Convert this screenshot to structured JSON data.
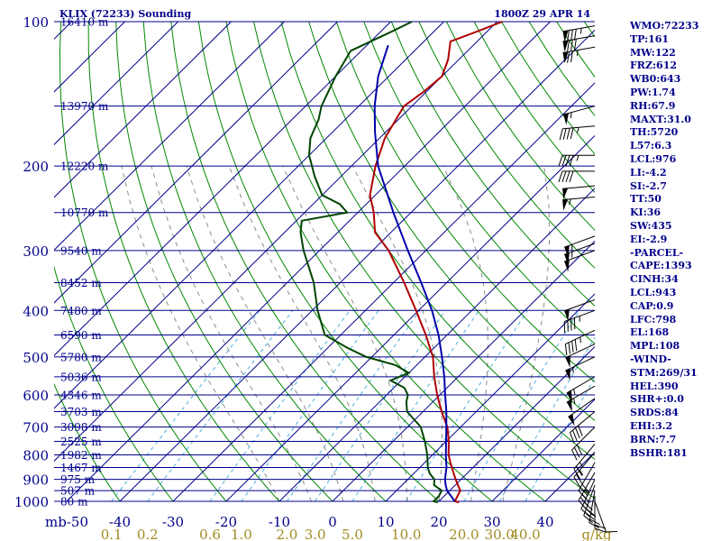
{
  "header": {
    "station": "KLIX (72233) Sounding",
    "time": "1800Z 29 APR 14"
  },
  "stats": [
    "WMO:72233",
    "TP:161",
    "MW:122",
    "FRZ:612",
    "WB0:643",
    "PW:1.74",
    "RH:67.9",
    "MAXT:31.0",
    "TH:5720",
    "L57:6.3",
    "LCL:976",
    "LI:-4.2",
    "SI:-2.7",
    "TT:50",
    "KI:36",
    "SW:435",
    "EI:-2.9",
    "-PARCEL-",
    "CAPE:1393",
    "CINH:34",
    "LCL:943",
    "CAP:0.9",
    "LFC:798",
    "EL:168",
    "MPL:108",
    "-WIND-",
    "STM:269/31",
    "HEL:390",
    "SHR+:0.0",
    "SRDS:84",
    "EHI:3.2",
    "BRN:7.7",
    "BSHR:181"
  ],
  "colors": {
    "isobar": "#00008b",
    "isotherm": "#00008b",
    "dry_adiabat": "#008800",
    "moist_adiabat": "#8c8c8c",
    "mixing_ratio": "#4ab0e0",
    "temperature": "#b00000",
    "dewpoint": "#004400",
    "parcel": "#0000aa",
    "mixing_label": "#a08a20",
    "wind_barb": "#000000"
  },
  "chart_data": {
    "type": "skew-t log-p sounding",
    "pressure_axis": {
      "unit": "mb",
      "range": [
        1000,
        100
      ],
      "scale": "log",
      "ticks": [
        100,
        200,
        300,
        400,
        500,
        600,
        700,
        800,
        900,
        1000
      ]
    },
    "temperature_axis": {
      "ticks": [
        -50,
        -40,
        -30,
        -20,
        -10,
        0,
        10,
        20,
        30,
        40
      ],
      "tick_labels": [
        "mb-50",
        "-40",
        "-30",
        "-20",
        "-10",
        "0",
        "10",
        "20",
        "30",
        "40"
      ]
    },
    "mixing_ratio_labels": {
      "unit": "g/kg",
      "values": [
        "0.1",
        "0.2",
        "0.6",
        "1.0",
        "2.0",
        "3.0",
        "5.0",
        "10.0",
        "20.0",
        "30.0",
        "40.0"
      ],
      "unit_label": "g/kg"
    },
    "height_labels": [
      {
        "p": 100,
        "label": "16410 m"
      },
      {
        "p": 150,
        "label": "13970 m"
      },
      {
        "p": 200,
        "label": "12220 m"
      },
      {
        "p": 250,
        "label": "10770 m"
      },
      {
        "p": 300,
        "label": "9540 m"
      },
      {
        "p": 350,
        "label": "8452 m"
      },
      {
        "p": 400,
        "label": "7480 m"
      },
      {
        "p": 450,
        "label": "6590 m"
      },
      {
        "p": 500,
        "label": "5780 m"
      },
      {
        "p": 550,
        "label": "5036 m"
      },
      {
        "p": 600,
        "label": "4346 m"
      },
      {
        "p": 650,
        "label": "3703 m"
      },
      {
        "p": 700,
        "label": "3098 m"
      },
      {
        "p": 750,
        "label": "2525 m"
      },
      {
        "p": 800,
        "label": "1982 m"
      },
      {
        "p": 850,
        "label": "1467 m"
      },
      {
        "p": 900,
        "label": "975 m"
      },
      {
        "p": 950,
        "label": "507 m"
      },
      {
        "p": 1000,
        "label": "80 m"
      }
    ],
    "series": [
      {
        "key": "temperature",
        "points": [
          [
            1005,
            24
          ],
          [
            1000,
            23
          ],
          [
            975,
            22.5
          ],
          [
            950,
            22
          ],
          [
            925,
            20.5
          ],
          [
            900,
            19
          ],
          [
            875,
            17.5
          ],
          [
            850,
            16
          ],
          [
            825,
            14.5
          ],
          [
            800,
            13
          ],
          [
            750,
            10.5
          ],
          [
            700,
            7.5
          ],
          [
            650,
            3.5
          ],
          [
            600,
            -0.5
          ],
          [
            550,
            -4.5
          ],
          [
            500,
            -8.5
          ],
          [
            450,
            -14
          ],
          [
            400,
            -20.5
          ],
          [
            350,
            -28
          ],
          [
            300,
            -37
          ],
          [
            275,
            -43
          ],
          [
            250,
            -47
          ],
          [
            230,
            -51
          ],
          [
            200,
            -55.5
          ],
          [
            175,
            -59
          ],
          [
            150,
            -61.5
          ],
          [
            140,
            -60.5
          ],
          [
            130,
            -60
          ],
          [
            120,
            -62
          ],
          [
            110,
            -65
          ],
          [
            105,
            -62
          ],
          [
            100,
            -59
          ]
        ]
      },
      {
        "key": "dewpoint",
        "points": [
          [
            1005,
            20
          ],
          [
            1000,
            19
          ],
          [
            975,
            19
          ],
          [
            950,
            18.5
          ],
          [
            925,
            16
          ],
          [
            900,
            15
          ],
          [
            875,
            13
          ],
          [
            850,
            11.5
          ],
          [
            800,
            9
          ],
          [
            750,
            6
          ],
          [
            700,
            2.5
          ],
          [
            650,
            -3
          ],
          [
            620,
            -5
          ],
          [
            600,
            -6
          ],
          [
            580,
            -8
          ],
          [
            560,
            -12
          ],
          [
            540,
            -10
          ],
          [
            520,
            -14
          ],
          [
            500,
            -21
          ],
          [
            480,
            -26
          ],
          [
            450,
            -33
          ],
          [
            400,
            -39
          ],
          [
            350,
            -45
          ],
          [
            300,
            -53
          ],
          [
            275,
            -57
          ],
          [
            260,
            -59
          ],
          [
            250,
            -52
          ],
          [
            240,
            -55
          ],
          [
            230,
            -60
          ],
          [
            210,
            -65
          ],
          [
            190,
            -70
          ],
          [
            175,
            -73
          ],
          [
            160,
            -75
          ],
          [
            150,
            -77
          ],
          [
            130,
            -80
          ],
          [
            115,
            -82
          ],
          [
            105,
            -78
          ],
          [
            100,
            -76
          ]
        ]
      },
      {
        "key": "parcel",
        "points": [
          [
            1000,
            23
          ],
          [
            950,
            19.5
          ],
          [
            925,
            18.2
          ],
          [
            900,
            17
          ],
          [
            850,
            15
          ],
          [
            800,
            12.5
          ],
          [
            750,
            10
          ],
          [
            700,
            7.3
          ],
          [
            650,
            4.4
          ],
          [
            600,
            1
          ],
          [
            550,
            -2.6
          ],
          [
            500,
            -6.8
          ],
          [
            450,
            -11.6
          ],
          [
            400,
            -17.5
          ],
          [
            350,
            -24.8
          ],
          [
            300,
            -33.4
          ],
          [
            250,
            -43.3
          ],
          [
            200,
            -55
          ],
          [
            170,
            -62
          ],
          [
            150,
            -67
          ],
          [
            130,
            -72
          ],
          [
            112,
            -76
          ]
        ]
      }
    ],
    "wind_barbs": [
      {
        "p": 102,
        "dir": 260,
        "spd": 85
      },
      {
        "p": 107,
        "dir": 260,
        "spd": 80
      },
      {
        "p": 113,
        "dir": 260,
        "spd": 75
      },
      {
        "p": 150,
        "dir": 255,
        "spd": 55
      },
      {
        "p": 165,
        "dir": 265,
        "spd": 45
      },
      {
        "p": 190,
        "dir": 270,
        "spd": 45
      },
      {
        "p": 205,
        "dir": 270,
        "spd": 40
      },
      {
        "p": 220,
        "dir": 265,
        "spd": 50
      },
      {
        "p": 232,
        "dir": 265,
        "spd": 55
      },
      {
        "p": 280,
        "dir": 250,
        "spd": 55
      },
      {
        "p": 290,
        "dir": 250,
        "spd": 55
      },
      {
        "p": 300,
        "dir": 250,
        "spd": 50
      },
      {
        "p": 380,
        "dir": 250,
        "spd": 50
      },
      {
        "p": 400,
        "dir": 250,
        "spd": 45
      },
      {
        "p": 440,
        "dir": 245,
        "spd": 45
      },
      {
        "p": 470,
        "dir": 245,
        "spd": 50
      },
      {
        "p": 500,
        "dir": 245,
        "spd": 55
      },
      {
        "p": 550,
        "dir": 240,
        "spd": 55
      },
      {
        "p": 575,
        "dir": 240,
        "spd": 55
      },
      {
        "p": 610,
        "dir": 235,
        "spd": 50
      },
      {
        "p": 650,
        "dir": 230,
        "spd": 40
      },
      {
        "p": 700,
        "dir": 225,
        "spd": 30
      },
      {
        "p": 760,
        "dir": 220,
        "spd": 25
      },
      {
        "p": 790,
        "dir": 220,
        "spd": 25
      },
      {
        "p": 830,
        "dir": 210,
        "spd": 30
      },
      {
        "p": 870,
        "dir": 210,
        "spd": 35
      },
      {
        "p": 900,
        "dir": 205,
        "spd": 30
      },
      {
        "p": 925,
        "dir": 200,
        "spd": 30
      },
      {
        "p": 950,
        "dir": 190,
        "spd": 25
      },
      {
        "p": 975,
        "dir": 180,
        "spd": 20
      },
      {
        "p": 1000,
        "dir": 160,
        "spd": 10
      }
    ]
  }
}
